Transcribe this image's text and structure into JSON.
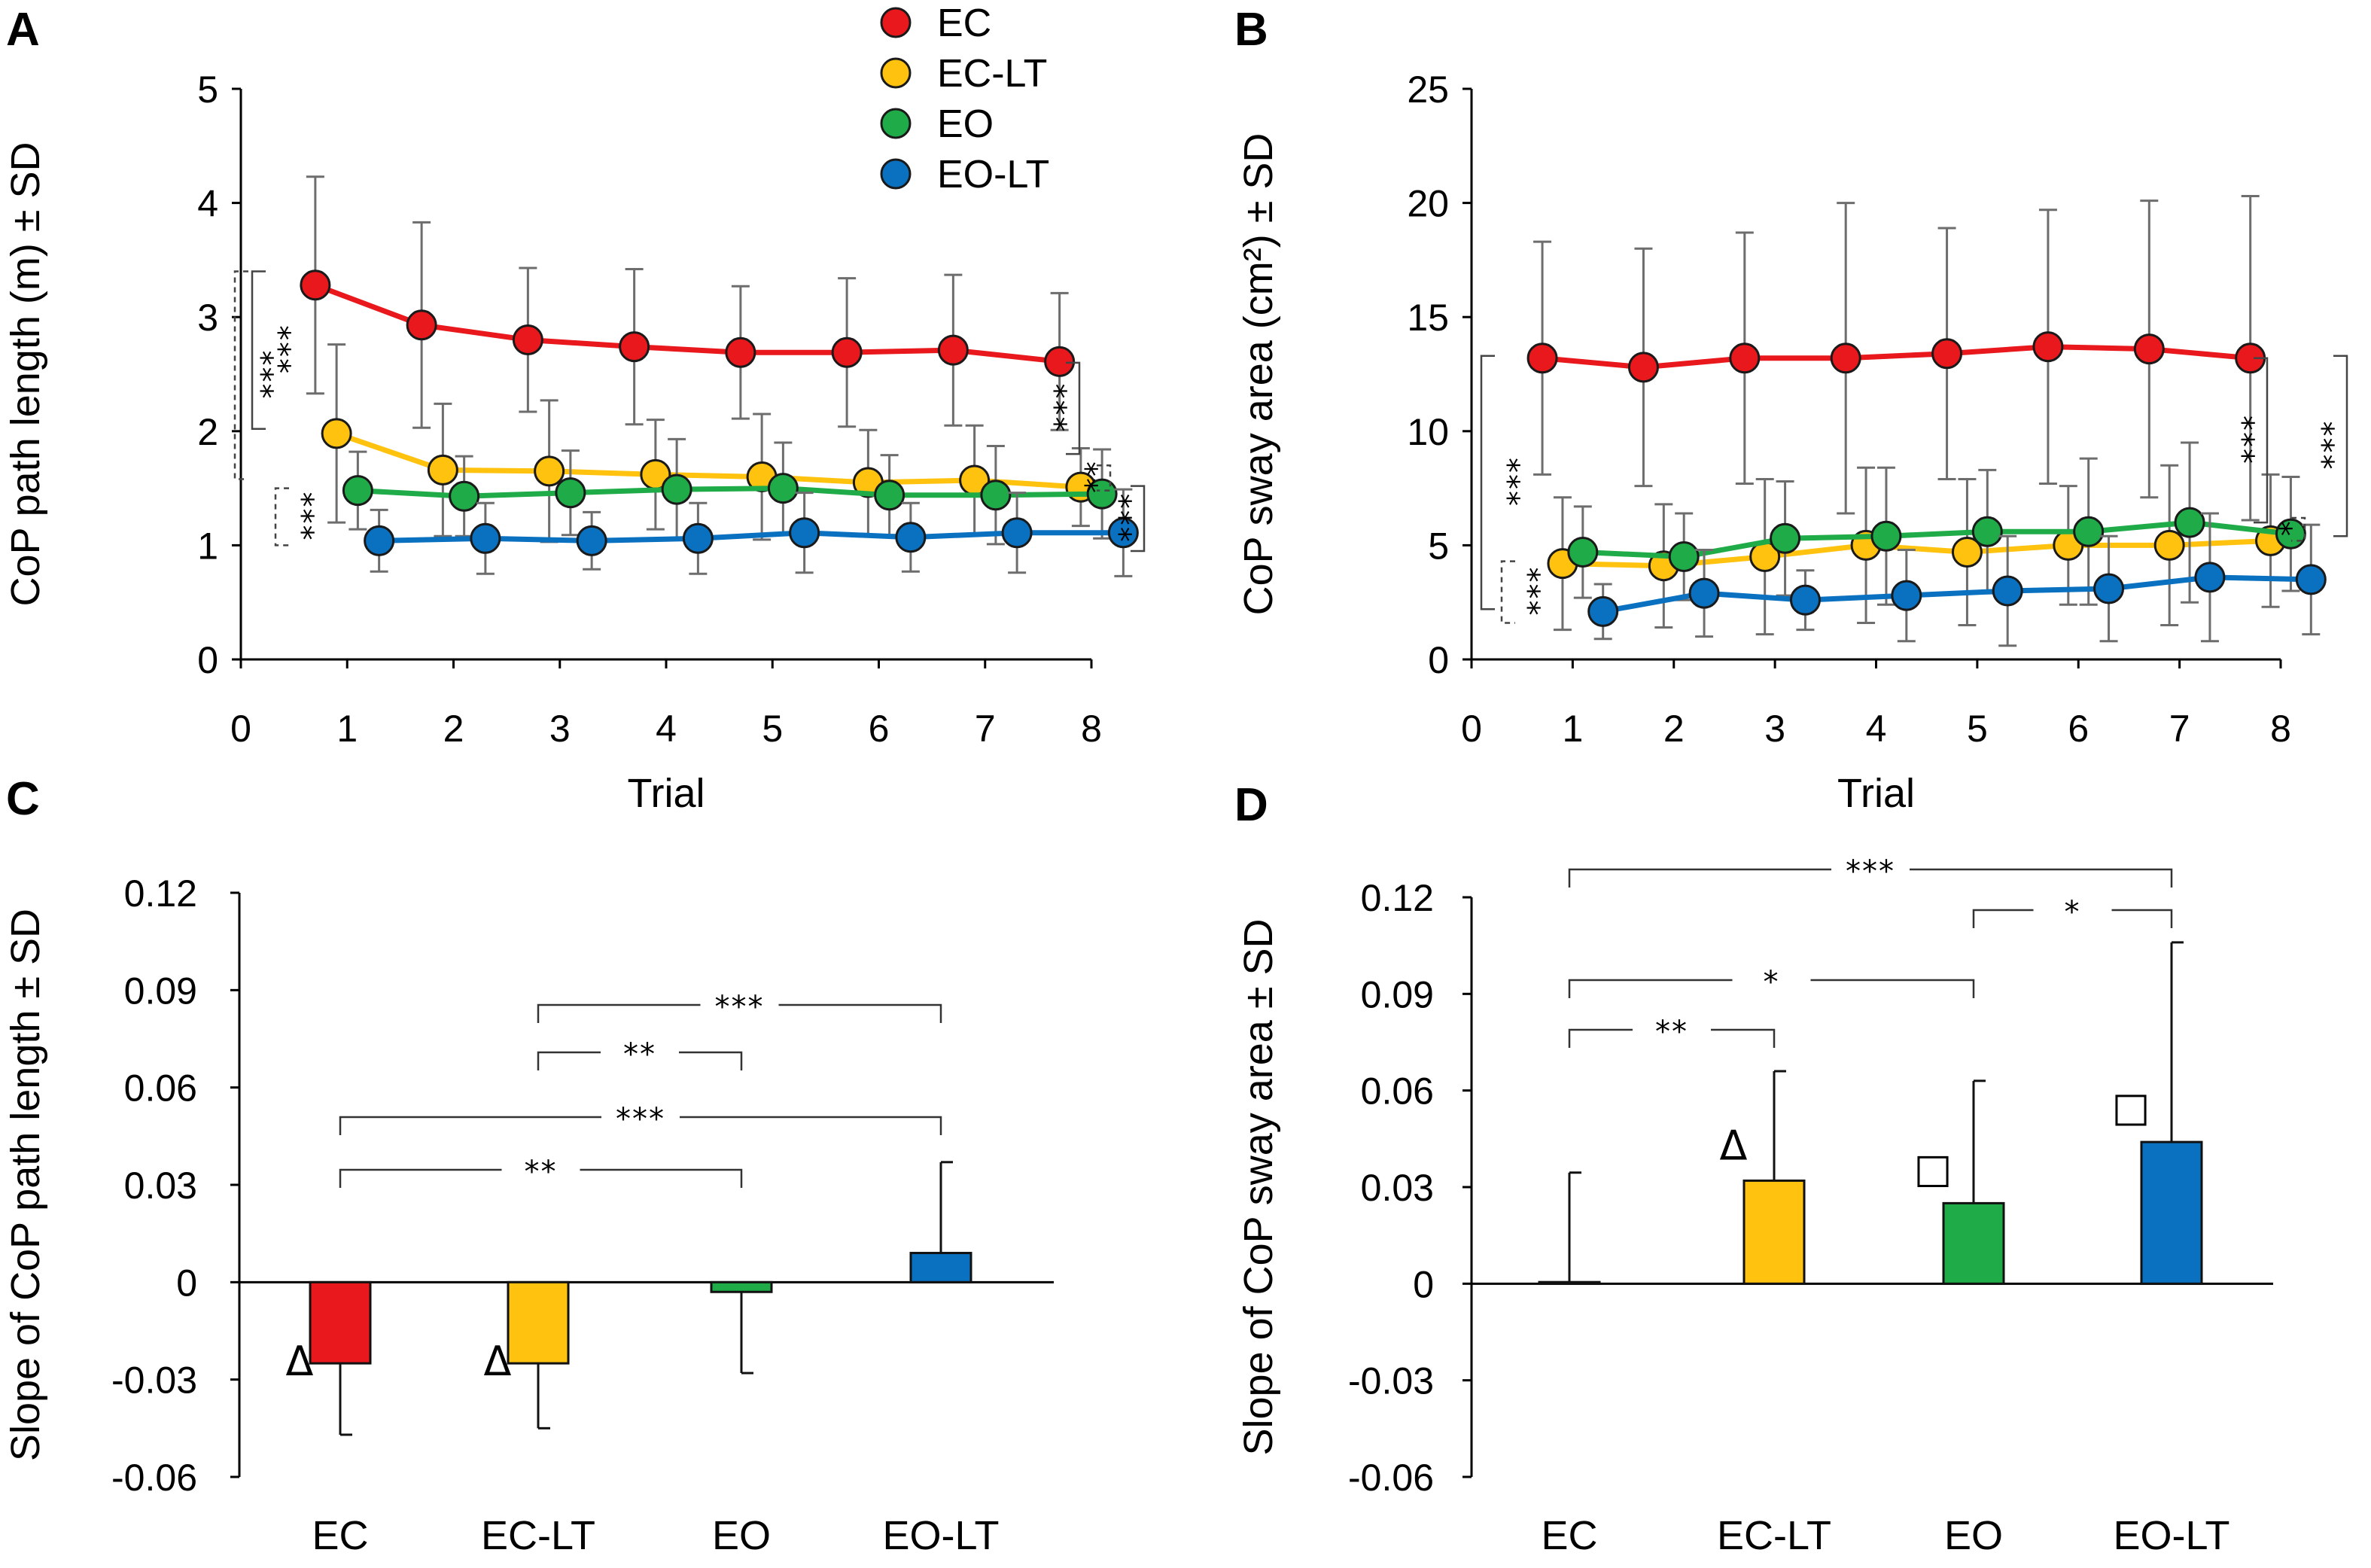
{
  "legend": [
    {
      "name": "EC",
      "color": "#e8181c"
    },
    {
      "name": "EC-LT",
      "color": "#ffc20e"
    },
    {
      "name": "EO",
      "color": "#1fab48"
    },
    {
      "name": "EO-LT",
      "color": "#0a70c0"
    }
  ],
  "chart_data": [
    {
      "panel": "A",
      "type": "line",
      "ylabel": "CoP path length (m) ± SD",
      "xlabel": "Trial",
      "xlim": [
        0,
        8
      ],
      "ylim": [
        0,
        5
      ],
      "xticks": [
        0,
        1,
        2,
        3,
        4,
        5,
        6,
        7,
        8
      ],
      "yticks": [
        0,
        1,
        2,
        3,
        4,
        5
      ],
      "x": [
        1,
        2,
        3,
        4,
        5,
        6,
        7,
        8
      ],
      "series": [
        {
          "name": "EC",
          "color": "#e8181c",
          "values": [
            3.28,
            2.93,
            2.8,
            2.74,
            2.69,
            2.69,
            2.71,
            2.61
          ],
          "sd": [
            0.95,
            0.9,
            0.63,
            0.68,
            0.58,
            0.65,
            0.66,
            0.6
          ]
        },
        {
          "name": "EC-LT",
          "color": "#ffc20e",
          "values": [
            1.98,
            1.66,
            1.65,
            1.62,
            1.6,
            1.55,
            1.57,
            1.51
          ],
          "sd": [
            0.78,
            0.58,
            0.62,
            0.48,
            0.55,
            0.46,
            0.48,
            0.34
          ]
        },
        {
          "name": "EO",
          "color": "#1fab48",
          "values": [
            1.48,
            1.43,
            1.46,
            1.49,
            1.5,
            1.44,
            1.44,
            1.45
          ],
          "sd": [
            0.34,
            0.35,
            0.37,
            0.44,
            0.4,
            0.35,
            0.43,
            0.39
          ]
        },
        {
          "name": "EO-LT",
          "color": "#0a70c0",
          "values": [
            1.04,
            1.06,
            1.04,
            1.06,
            1.11,
            1.07,
            1.11,
            1.11
          ],
          "sd": [
            0.27,
            0.31,
            0.25,
            0.31,
            0.35,
            0.3,
            0.35,
            0.38
          ]
        }
      ],
      "annotations": [
        "***",
        "***",
        "***",
        "***",
        "**",
        "***"
      ]
    },
    {
      "panel": "B",
      "type": "line",
      "ylabel": "CoP sway area (cm²) ± SD",
      "xlabel": "Trial",
      "xlim": [
        0,
        8
      ],
      "ylim": [
        0,
        25
      ],
      "xticks": [
        0,
        1,
        2,
        3,
        4,
        5,
        6,
        7,
        8
      ],
      "yticks": [
        0,
        5,
        10,
        15,
        20,
        25
      ],
      "x": [
        1,
        2,
        3,
        4,
        5,
        6,
        7,
        8
      ],
      "series": [
        {
          "name": "EC",
          "color": "#e8181c",
          "values": [
            13.2,
            12.8,
            13.2,
            13.2,
            13.4,
            13.7,
            13.6,
            13.2
          ],
          "sd": [
            5.1,
            5.2,
            5.5,
            6.8,
            5.5,
            6.0,
            6.5,
            7.1
          ]
        },
        {
          "name": "EC-LT",
          "color": "#ffc20e",
          "values": [
            4.2,
            4.1,
            4.5,
            5.0,
            4.7,
            5.0,
            5.0,
            5.2
          ],
          "sd": [
            2.9,
            2.7,
            3.4,
            3.4,
            3.2,
            2.6,
            3.5,
            2.9
          ]
        },
        {
          "name": "EO",
          "color": "#1fab48",
          "values": [
            4.7,
            4.5,
            5.3,
            5.4,
            5.6,
            5.6,
            6.0,
            5.5
          ],
          "sd": [
            2.0,
            1.9,
            2.5,
            3.0,
            2.7,
            3.2,
            3.5,
            2.5
          ]
        },
        {
          "name": "EO-LT",
          "color": "#0a70c0",
          "values": [
            2.1,
            2.9,
            2.6,
            2.8,
            3.0,
            3.1,
            3.6,
            3.5
          ],
          "sd": [
            1.2,
            1.9,
            1.3,
            2.0,
            2.4,
            2.3,
            2.8,
            2.4
          ]
        }
      ],
      "annotations": [
        "***",
        "***",
        "***",
        "***",
        "*"
      ]
    },
    {
      "panel": "C",
      "type": "bar",
      "ylabel": "Slope of CoP path length  ± SD",
      "categories": [
        "EC",
        "EC-LT",
        "EO",
        "EO-LT"
      ],
      "colors": [
        "#e8181c",
        "#ffc20e",
        "#1fab48",
        "#0a70c0"
      ],
      "values": [
        -0.025,
        -0.025,
        -0.003,
        0.009
      ],
      "sd": [
        0.022,
        0.02,
        0.025,
        0.028
      ],
      "ylim": [
        -0.06,
        0.12
      ],
      "yticks": [
        "0.12",
        "0.09",
        "0.06",
        "0.03",
        "0",
        "-0.03",
        "-0.06"
      ],
      "markers": [
        "Δ",
        "Δ",
        "",
        ""
      ],
      "brackets": [
        {
          "from": "EC",
          "to": "EO",
          "label": "**"
        },
        {
          "from": "EC",
          "to": "EO-LT",
          "label": "***"
        },
        {
          "from": "EC-LT",
          "to": "EO",
          "label": "**"
        },
        {
          "from": "EC-LT",
          "to": "EO-LT",
          "label": "***"
        }
      ]
    },
    {
      "panel": "D",
      "type": "bar",
      "ylabel": "Slope of CoP sway area ± SD",
      "categories": [
        "EC",
        "EC-LT",
        "EO",
        "EO-LT"
      ],
      "colors": [
        "#e8181c",
        "#ffc20e",
        "#1fab48",
        "#0a70c0"
      ],
      "values": [
        0.0005,
        0.032,
        0.025,
        0.044
      ],
      "sd": [
        0.034,
        0.034,
        0.038,
        0.062
      ],
      "ylim": [
        -0.06,
        0.12
      ],
      "yticks": [
        "0.12",
        "0.09",
        "0.06",
        "0.03",
        "0",
        "-0.03",
        "-0.06"
      ],
      "markers": [
        "",
        "Δ",
        "□",
        "□"
      ],
      "brackets": [
        {
          "from": "EC",
          "to": "EC-LT",
          "label": "**"
        },
        {
          "from": "EC",
          "to": "EO",
          "label": "*"
        },
        {
          "from": "EC",
          "to": "EO-LT",
          "label": "***"
        },
        {
          "from": "EO",
          "to": "EO-LT",
          "label": "*"
        }
      ]
    }
  ]
}
